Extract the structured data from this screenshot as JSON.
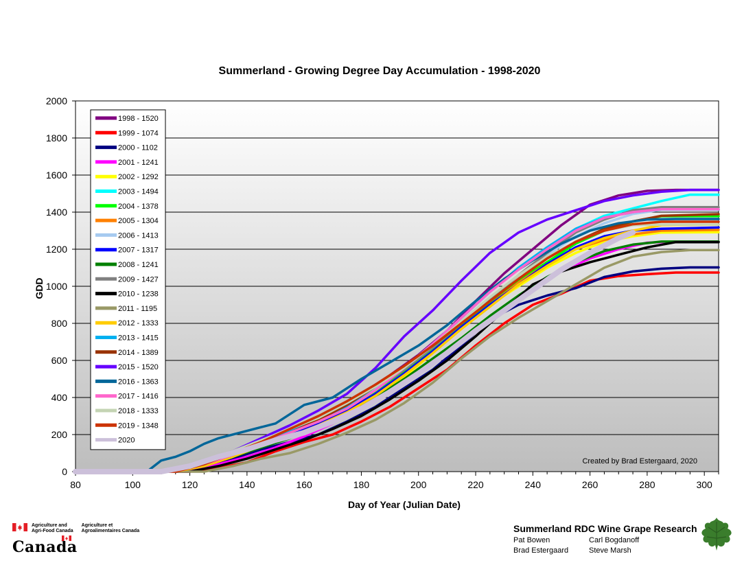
{
  "chart_data": {
    "type": "line",
    "title": "Summerland - Growing Degree Day Accumulation - 1998-2020",
    "xlabel": "Day of Year (Julian Date)",
    "ylabel": "GDD",
    "xlim": [
      80,
      305
    ],
    "ylim": [
      0,
      2000
    ],
    "xticks": [
      80,
      100,
      120,
      140,
      160,
      180,
      200,
      220,
      240,
      260,
      280,
      300
    ],
    "yticks": [
      0,
      200,
      400,
      600,
      800,
      1000,
      1200,
      1400,
      1600,
      1800,
      2000
    ],
    "grid": "horizontal",
    "legend_position": "top-left",
    "annotation": "Created by Brad Estergaard, 2020",
    "series": [
      {
        "name": "1998 - 1520",
        "color": "#800080",
        "x": [
          80,
          110,
          120,
          130,
          140,
          150,
          160,
          170,
          180,
          190,
          200,
          210,
          220,
          230,
          240,
          250,
          260,
          270,
          280,
          290,
          305
        ],
        "y": [
          0,
          0,
          10,
          60,
          120,
          190,
          260,
          330,
          420,
          520,
          630,
          760,
          920,
          1070,
          1200,
          1330,
          1440,
          1490,
          1515,
          1520,
          1520
        ]
      },
      {
        "name": "1999 - 1074",
        "color": "#ff0000",
        "x": [
          80,
          120,
          130,
          140,
          150,
          160,
          170,
          180,
          190,
          200,
          210,
          220,
          230,
          240,
          250,
          260,
          270,
          280,
          290,
          305
        ],
        "y": [
          0,
          0,
          20,
          50,
          110,
          160,
          200,
          270,
          350,
          450,
          550,
          680,
          800,
          900,
          960,
          1030,
          1055,
          1065,
          1074,
          1074
        ]
      },
      {
        "name": "2000 - 1102",
        "color": "#000080",
        "x": [
          80,
          115,
          125,
          135,
          145,
          155,
          165,
          175,
          185,
          195,
          205,
          215,
          225,
          235,
          245,
          255,
          265,
          275,
          285,
          295,
          305
        ],
        "y": [
          0,
          0,
          30,
          70,
          120,
          160,
          200,
          270,
          350,
          450,
          550,
          680,
          820,
          900,
          950,
          990,
          1050,
          1080,
          1095,
          1102,
          1102
        ]
      },
      {
        "name": "2001 - 1241",
        "color": "#ff00ff",
        "x": [
          80,
          120,
          130,
          140,
          150,
          160,
          170,
          180,
          190,
          200,
          210,
          220,
          230,
          240,
          250,
          260,
          270,
          280,
          290,
          305
        ],
        "y": [
          0,
          0,
          40,
          80,
          130,
          190,
          260,
          350,
          430,
          530,
          640,
          760,
          880,
          990,
          1080,
          1150,
          1200,
          1235,
          1241,
          1241
        ]
      },
      {
        "name": "2002 - 1292",
        "color": "#ffff00",
        "x": [
          80,
          115,
          125,
          135,
          145,
          155,
          165,
          175,
          185,
          195,
          205,
          215,
          225,
          235,
          245,
          255,
          265,
          275,
          285,
          305
        ],
        "y": [
          0,
          0,
          30,
          80,
          140,
          190,
          250,
          320,
          410,
          510,
          640,
          780,
          900,
          1000,
          1100,
          1180,
          1240,
          1270,
          1290,
          1292
        ]
      },
      {
        "name": "2003 - 1494",
        "color": "#00ffff",
        "x": [
          80,
          115,
          125,
          135,
          145,
          155,
          165,
          175,
          185,
          195,
          205,
          215,
          225,
          235,
          245,
          255,
          265,
          275,
          285,
          295,
          305
        ],
        "y": [
          0,
          0,
          40,
          90,
          150,
          200,
          260,
          340,
          440,
          560,
          690,
          830,
          970,
          1100,
          1210,
          1310,
          1380,
          1420,
          1460,
          1494,
          1494
        ]
      },
      {
        "name": "2004 - 1378",
        "color": "#00ff00",
        "x": [
          80,
          115,
          125,
          135,
          145,
          155,
          165,
          175,
          185,
          195,
          205,
          215,
          225,
          235,
          245,
          255,
          265,
          275,
          285,
          305
        ],
        "y": [
          0,
          0,
          40,
          100,
          160,
          210,
          270,
          340,
          430,
          540,
          660,
          790,
          910,
          1030,
          1130,
          1230,
          1300,
          1350,
          1378,
          1378
        ]
      },
      {
        "name": "2005 - 1304",
        "color": "#ff8000",
        "x": [
          80,
          115,
          125,
          135,
          145,
          155,
          165,
          175,
          185,
          195,
          205,
          215,
          225,
          235,
          245,
          255,
          265,
          275,
          285,
          305
        ],
        "y": [
          0,
          0,
          40,
          90,
          150,
          200,
          260,
          330,
          420,
          530,
          650,
          780,
          900,
          1020,
          1120,
          1200,
          1250,
          1280,
          1300,
          1304
        ]
      },
      {
        "name": "2006 - 1413",
        "color": "#a6caf0",
        "x": [
          80,
          115,
          125,
          135,
          145,
          155,
          165,
          175,
          185,
          195,
          205,
          215,
          225,
          235,
          245,
          255,
          265,
          275,
          285,
          305
        ],
        "y": [
          0,
          0,
          40,
          90,
          150,
          210,
          270,
          350,
          450,
          560,
          680,
          810,
          940,
          1060,
          1170,
          1270,
          1340,
          1390,
          1413,
          1413
        ]
      },
      {
        "name": "2007 - 1317",
        "color": "#0000ff",
        "x": [
          80,
          115,
          125,
          135,
          145,
          155,
          165,
          175,
          185,
          195,
          205,
          215,
          225,
          235,
          245,
          255,
          265,
          275,
          285,
          305
        ],
        "y": [
          0,
          0,
          40,
          90,
          140,
          200,
          260,
          330,
          420,
          530,
          650,
          780,
          900,
          1010,
          1120,
          1210,
          1270,
          1300,
          1310,
          1317
        ]
      },
      {
        "name": "2008 - 1241",
        "color": "#008000",
        "x": [
          80,
          115,
          125,
          135,
          145,
          155,
          165,
          175,
          185,
          195,
          205,
          215,
          225,
          235,
          245,
          255,
          265,
          275,
          285,
          305
        ],
        "y": [
          0,
          0,
          30,
          80,
          130,
          180,
          240,
          310,
          400,
          500,
          610,
          720,
          840,
          950,
          1050,
          1130,
          1190,
          1225,
          1241,
          1241
        ]
      },
      {
        "name": "2009 - 1427",
        "color": "#808080",
        "x": [
          80,
          115,
          125,
          135,
          145,
          155,
          165,
          175,
          185,
          195,
          205,
          215,
          225,
          235,
          245,
          255,
          265,
          275,
          285,
          305
        ],
        "y": [
          0,
          0,
          40,
          90,
          150,
          210,
          270,
          340,
          440,
          550,
          670,
          800,
          930,
          1060,
          1180,
          1290,
          1360,
          1410,
          1427,
          1427
        ]
      },
      {
        "name": "2010 - 1238",
        "color": "#000000",
        "x": [
          80,
          120,
          130,
          140,
          150,
          160,
          170,
          180,
          190,
          200,
          210,
          220,
          230,
          240,
          250,
          260,
          270,
          280,
          290,
          305
        ],
        "y": [
          0,
          0,
          30,
          70,
          120,
          170,
          230,
          300,
          390,
          490,
          600,
          730,
          870,
          1010,
          1080,
          1130,
          1170,
          1210,
          1238,
          1238
        ]
      },
      {
        "name": "2011 - 1195",
        "color": "#999966",
        "x": [
          80,
          125,
          135,
          145,
          155,
          165,
          175,
          185,
          195,
          205,
          215,
          225,
          235,
          245,
          255,
          265,
          275,
          285,
          295,
          305
        ],
        "y": [
          0,
          0,
          30,
          70,
          100,
          150,
          210,
          280,
          370,
          480,
          610,
          730,
          830,
          920,
          1010,
          1100,
          1160,
          1185,
          1195,
          1195
        ]
      },
      {
        "name": "2012 - 1333",
        "color": "#ffcc00",
        "x": [
          80,
          115,
          125,
          135,
          145,
          155,
          165,
          175,
          185,
          195,
          205,
          215,
          225,
          235,
          245,
          255,
          265,
          275,
          285,
          305
        ],
        "y": [
          0,
          0,
          30,
          80,
          140,
          190,
          250,
          320,
          410,
          520,
          640,
          770,
          890,
          1010,
          1110,
          1200,
          1260,
          1300,
          1330,
          1333
        ]
      },
      {
        "name": "2013 - 1415",
        "color": "#00b0f0",
        "x": [
          80,
          115,
          125,
          135,
          145,
          155,
          165,
          175,
          185,
          195,
          205,
          215,
          225,
          235,
          245,
          255,
          265,
          275,
          285,
          305
        ],
        "y": [
          0,
          0,
          40,
          100,
          160,
          220,
          280,
          350,
          440,
          560,
          690,
          830,
          970,
          1100,
          1210,
          1310,
          1370,
          1400,
          1415,
          1415
        ]
      },
      {
        "name": "2014 - 1389",
        "color": "#993300",
        "x": [
          80,
          115,
          125,
          135,
          145,
          155,
          165,
          175,
          185,
          195,
          205,
          215,
          225,
          235,
          245,
          255,
          265,
          275,
          285,
          305
        ],
        "y": [
          0,
          0,
          40,
          90,
          150,
          210,
          280,
          360,
          460,
          570,
          680,
          800,
          920,
          1040,
          1150,
          1240,
          1310,
          1350,
          1380,
          1389
        ]
      },
      {
        "name": "2015 - 1520",
        "color": "#6600ff",
        "x": [
          80,
          115,
          125,
          135,
          145,
          155,
          165,
          175,
          185,
          195,
          205,
          215,
          225,
          235,
          245,
          255,
          265,
          275,
          285,
          295,
          305
        ],
        "y": [
          0,
          0,
          50,
          110,
          180,
          250,
          330,
          420,
          560,
          730,
          870,
          1030,
          1180,
          1290,
          1360,
          1410,
          1460,
          1490,
          1510,
          1520,
          1520
        ]
      },
      {
        "name": "2016 - 1363",
        "color": "#006699",
        "x": [
          80,
          105,
          110,
          115,
          120,
          125,
          130,
          140,
          150,
          160,
          170,
          180,
          190,
          200,
          210,
          220,
          230,
          240,
          250,
          260,
          270,
          280,
          290,
          305
        ],
        "y": [
          0,
          0,
          60,
          80,
          110,
          150,
          180,
          220,
          260,
          360,
          400,
          500,
          590,
          680,
          790,
          920,
          1040,
          1140,
          1230,
          1300,
          1340,
          1360,
          1363,
          1363
        ]
      },
      {
        "name": "2017 - 1416",
        "color": "#ff66cc",
        "x": [
          80,
          115,
          125,
          135,
          145,
          155,
          165,
          175,
          185,
          195,
          205,
          215,
          225,
          235,
          245,
          255,
          265,
          275,
          285,
          305
        ],
        "y": [
          0,
          0,
          40,
          90,
          150,
          210,
          270,
          340,
          440,
          560,
          690,
          830,
          970,
          1090,
          1200,
          1300,
          1370,
          1400,
          1416,
          1416
        ]
      },
      {
        "name": "2018 - 1333",
        "color": "#c4d4b4",
        "x": [
          80,
          115,
          125,
          135,
          145,
          155,
          165,
          175,
          185,
          195,
          205,
          215,
          225,
          235,
          245,
          255,
          265,
          275,
          285,
          305
        ],
        "y": [
          0,
          0,
          50,
          110,
          170,
          230,
          290,
          370,
          460,
          560,
          680,
          810,
          940,
          1060,
          1160,
          1240,
          1300,
          1330,
          1333,
          1333
        ]
      },
      {
        "name": "2019 - 1348",
        "color": "#cc3300",
        "x": [
          80,
          115,
          125,
          135,
          145,
          155,
          165,
          175,
          185,
          195,
          205,
          215,
          225,
          235,
          245,
          255,
          265,
          275,
          285,
          305
        ],
        "y": [
          0,
          0,
          40,
          100,
          160,
          230,
          300,
          380,
          470,
          570,
          680,
          800,
          920,
          1040,
          1150,
          1240,
          1300,
          1335,
          1348,
          1348
        ]
      },
      {
        "name": "2020",
        "color": "#ccc0da",
        "x": [
          80,
          110,
          120,
          130,
          140,
          150,
          160,
          170,
          180,
          190,
          200,
          210,
          220,
          230,
          240,
          250,
          260,
          270,
          275
        ],
        "y": [
          0,
          0,
          30,
          80,
          120,
          170,
          210,
          270,
          340,
          430,
          530,
          640,
          760,
          870,
          980,
          1090,
          1180,
          1260,
          1290
        ]
      }
    ]
  },
  "footer": {
    "agency_en_1": "Agriculture and",
    "agency_en_2": "Agri-Food Canada",
    "agency_fr_1": "Agriculture et",
    "agency_fr_2": "Agroalimentaires Canada",
    "wordmark": "Canada",
    "research_title": "Summerland RDC Wine Grape Research",
    "people": [
      "Pat Bowen",
      "Carl Bogdanoff",
      "Brad Estergaard",
      "Steve Marsh"
    ]
  },
  "colors": {
    "plot_gradient_top": "#ffffff",
    "plot_gradient_bottom": "#bdbdbd",
    "flag_red": "#e41e26",
    "leaf_green": "#3a7d2c"
  }
}
